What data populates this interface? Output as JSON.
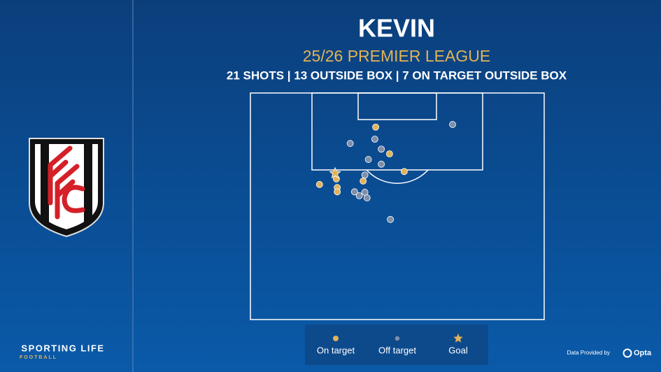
{
  "chart_data": {
    "type": "scatter",
    "title": "KEVIN",
    "subtitle": "25/26 PREMIER LEAGUE",
    "summary": "21 SHOTS | 13 OUTSIDE BOX | 7 ON TARGET OUTSIDE BOX",
    "xlim": [
      0,
      68
    ],
    "ylim": [
      0,
      52.5
    ],
    "series": [
      {
        "name": "On target",
        "color": "#e2b356",
        "marker": "circle",
        "x": [
          29.0,
          32.2,
          35.6,
          26.1,
          19.9,
          16.0,
          20.1,
          20.1
        ],
        "y": [
          7.9,
          14.1,
          18.2,
          20.4,
          19.9,
          21.2,
          21.9,
          22.9
        ]
      },
      {
        "name": "Off target",
        "color": "#7f8fa9",
        "marker": "circle",
        "x": [
          46.8,
          23.1,
          28.8,
          30.3,
          27.3,
          30.3,
          26.5,
          24.1,
          26.5,
          25.2,
          27.0,
          32.4
        ],
        "y": [
          7.3,
          11.7,
          10.7,
          13.0,
          15.4,
          16.5,
          19.0,
          22.9,
          23.0,
          23.8,
          24.3,
          29.3
        ]
      },
      {
        "name": "Goal",
        "color": "#e2b356",
        "marker": "star",
        "x": [
          19.6
        ],
        "y": [
          18.6
        ]
      }
    ]
  },
  "branding": {
    "name": "SPORTING LIFE",
    "section": "FOOTBALL",
    "credit": "Data Provided by",
    "provider": "Opta"
  }
}
